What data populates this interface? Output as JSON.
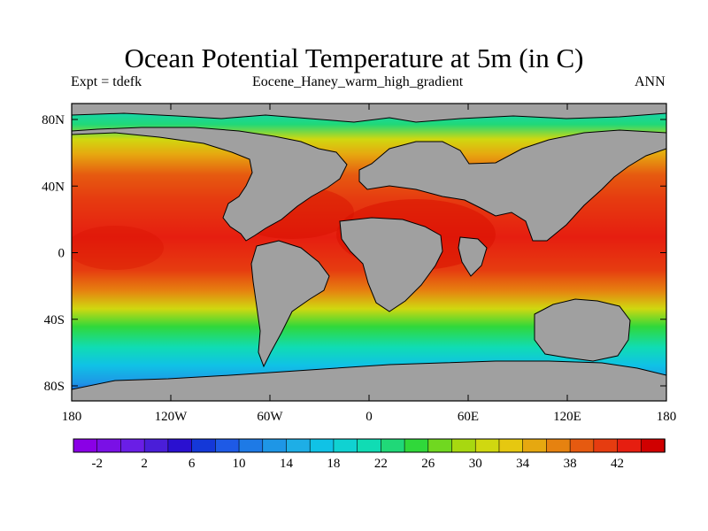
{
  "title": "Ocean Potential Temperature at 5m (in C)",
  "experiment": "Expt = tdefk",
  "case_name": "Eocene_Haney_warm_high_gradient",
  "season": "ANN",
  "colors": {
    "land": "#a0a0a0",
    "palette": [
      "#8a00e6",
      "#7a10e6",
      "#6a1ee6",
      "#4a1ed8",
      "#2a10d0",
      "#1438d8",
      "#1e5ae6",
      "#1e7ae6",
      "#1e96e6",
      "#1eaee6",
      "#10c2e6",
      "#10d2d2",
      "#10dcb4",
      "#20d878",
      "#30d83a",
      "#70d820",
      "#a8d810",
      "#d0d810",
      "#e6c810",
      "#e6a810",
      "#e68210",
      "#e65a10",
      "#e63c10",
      "#e61e10",
      "#d00000"
    ]
  },
  "colorbar": {
    "labels": [
      "-2",
      "2",
      "6",
      "10",
      "14",
      "18",
      "22",
      "26",
      "30",
      "34",
      "38",
      "42"
    ],
    "min": -4,
    "max": 46
  },
  "axes": {
    "lon_ticks": [
      "180",
      "120W",
      "60W",
      "0",
      "60E",
      "120E",
      "180"
    ],
    "lat_ticks": [
      "80N",
      "40N",
      "0",
      "40S",
      "80S"
    ]
  }
}
